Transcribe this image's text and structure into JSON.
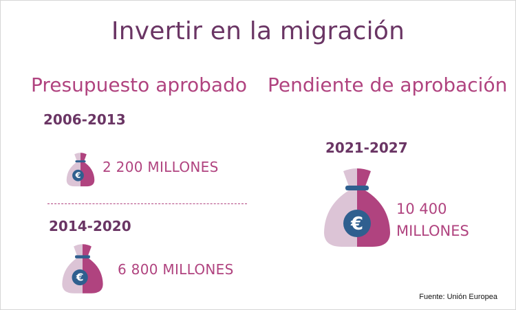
{
  "title": "Invertir en la migración",
  "sections": {
    "approved": {
      "heading": "Presupuesto aprobado",
      "items": [
        {
          "period": "2006-2013",
          "amount": "2 200 MILLONES",
          "icon": "money-bag-euro-icon"
        },
        {
          "period": "2014-2020",
          "amount": "6 800 MILLONES",
          "icon": "money-bag-euro-icon"
        }
      ]
    },
    "pending": {
      "heading": "Pendiente de aprobación",
      "items": [
        {
          "period": "2021-2027",
          "amount_line1": "10 400",
          "amount_line2": "MILLONES",
          "icon": "money-bag-euro-icon"
        }
      ]
    }
  },
  "source": "Fuente: Unión Europea",
  "colors": {
    "title": "#6a3564",
    "accent": "#b0437f",
    "bag_light": "#dcc4d6",
    "bag_dark": "#b0437f",
    "coin": "#2f5f8f"
  }
}
